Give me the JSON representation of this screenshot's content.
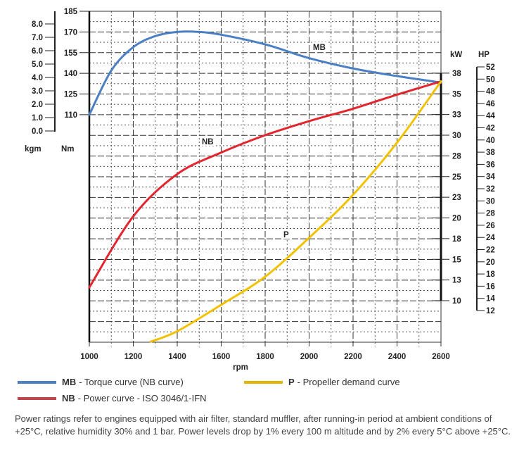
{
  "chart_data": {
    "type": "line",
    "xlabel": "rpm",
    "x_ticks": [
      1000,
      1200,
      1400,
      1600,
      1800,
      2000,
      2200,
      2400,
      2600
    ],
    "xlim": [
      1000,
      2600
    ],
    "axes": {
      "kgm": {
        "label": "kgm",
        "ticks": [
          "8.0",
          "7.0",
          "6.0",
          "5.0",
          "4.0",
          "3.0",
          "2.0",
          "1.0",
          "0.0"
        ]
      },
      "nm": {
        "label": "Nm",
        "ticks": [
          185,
          170,
          155,
          140,
          125,
          110
        ]
      },
      "kw": {
        "label": "kW",
        "tick_values": [
          37.5,
          35,
          32.5,
          30,
          27.5,
          25,
          22.5,
          20,
          17.5,
          15,
          12.5,
          10
        ],
        "tick_labels": [
          "38",
          "35",
          "33",
          "30",
          "28",
          "25",
          "23",
          "20",
          "18",
          "15",
          "13",
          "10"
        ]
      },
      "hp": {
        "label": "HP",
        "ticks": [
          52,
          50,
          48,
          46,
          44,
          42,
          40,
          38,
          36,
          34,
          32,
          30,
          28,
          26,
          24,
          22,
          20,
          18,
          16,
          14,
          12
        ]
      }
    },
    "grid": true,
    "series": [
      {
        "name": "MB",
        "unit": "Nm",
        "color": "#4a7fc4",
        "x": [
          1000,
          1100,
          1200,
          1300,
          1400,
          1500,
          1600,
          1800,
          2000,
          2200,
          2400,
          2600
        ],
        "y": [
          110,
          142,
          159,
          167,
          170,
          170,
          168,
          161,
          151,
          143.5,
          138,
          133.3
        ]
      },
      {
        "name": "NB",
        "unit": "kW",
        "color": "#e3262e",
        "x": [
          1000,
          1200,
          1400,
          1600,
          1800,
          2000,
          2200,
          2400,
          2600
        ],
        "y": [
          11.6,
          20.2,
          25.3,
          27.9,
          30.0,
          31.7,
          33.2,
          34.9,
          36.5
        ]
      },
      {
        "name": "P",
        "unit": "kW",
        "color": "#f2c200",
        "x": [
          1280,
          1400,
          1600,
          1800,
          2000,
          2200,
          2400,
          2600
        ],
        "y": [
          5.05,
          6.3,
          9.5,
          12.9,
          17.6,
          22.8,
          29.1,
          36.5
        ]
      }
    ],
    "annotations": [
      "MB",
      "NB",
      "P"
    ]
  },
  "legend": [
    {
      "key": "MB",
      "text": "- Torque curve (NB curve)",
      "color": "#4a7fc4"
    },
    {
      "key": "NB",
      "text": "- Power curve - ISO 3046/1-IFN",
      "color": "#c0454a"
    },
    {
      "key": "P",
      "text": "- Propeller demand curve",
      "color": "#e0b600"
    }
  ],
  "footer": "Power ratings refer to engines equipped with air filter, standard muffler, after running-in period at ambient conditions of +25°C, relative humidity 30% and 1 bar. Power levels drop by 1% every 100 m altitude and by 2% every 5°C above +25°C."
}
